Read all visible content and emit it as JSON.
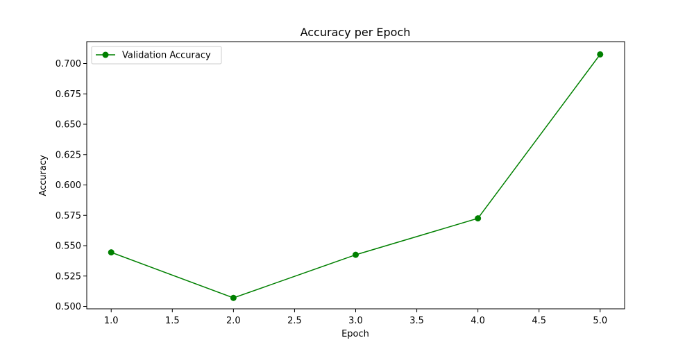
{
  "chart_data": {
    "type": "line",
    "title": "Accuracy per Epoch",
    "xlabel": "Epoch",
    "ylabel": "Accuracy",
    "xlim": [
      0.8,
      5.2
    ],
    "ylim": [
      0.498,
      0.718
    ],
    "grid": false,
    "legend_position": "top-left",
    "x_ticks": [
      "1.0",
      "1.5",
      "2.0",
      "2.5",
      "3.0",
      "3.5",
      "4.0",
      "4.5",
      "5.0"
    ],
    "y_ticks": [
      "0.500",
      "0.525",
      "0.550",
      "0.575",
      "0.600",
      "0.625",
      "0.650",
      "0.675",
      "0.700"
    ],
    "series": [
      {
        "name": "Validation Accuracy",
        "color": "#008000",
        "marker": "circle",
        "x": [
          1,
          2,
          3,
          4,
          5
        ],
        "y": [
          0.5445,
          0.507,
          0.5425,
          0.5725,
          0.7075
        ]
      }
    ]
  }
}
